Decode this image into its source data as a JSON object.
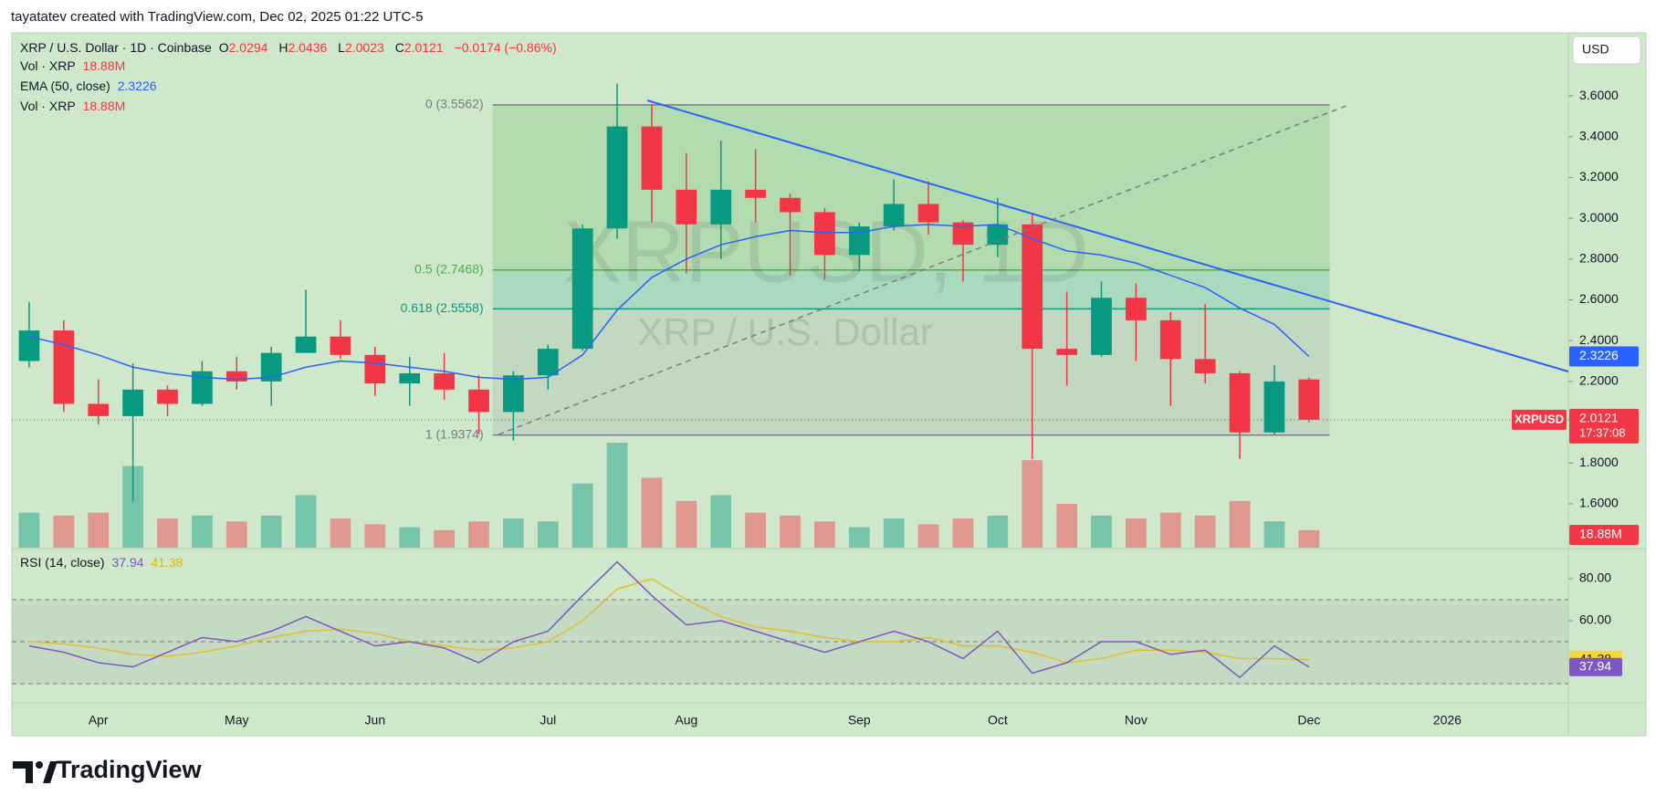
{
  "credit": "tayatatev created with TradingView.com, Dec 02, 2025 01:22 UTC-5",
  "brand": "TradingView",
  "chart_data": {
    "type": "candlestick",
    "title": "XRP / U.S. Dollar · 1D · Coinbase",
    "symbol": "XRPUSD",
    "watermark": "XRPUSD, 1D",
    "description": "XRP / U.S. Dollar",
    "currency": "USD",
    "countdown": "17:37:08",
    "last_bar": {
      "labels": [
        "O",
        "H",
        "L",
        "C"
      ],
      "values": [
        2.0294,
        2.0436,
        2.0023,
        2.0121
      ],
      "change": "−0.0174 (−0.86%)"
    },
    "categories": [
      null,
      null,
      "Apr",
      null,
      null,
      null,
      "May",
      null,
      null,
      null,
      "Jun",
      null,
      null,
      null,
      null,
      "Jul",
      null,
      null,
      null,
      "Aug",
      null,
      null,
      null,
      null,
      "Sep",
      null,
      null,
      null,
      "Oct",
      null,
      null,
      null,
      "Nov",
      null,
      null,
      null,
      null,
      "Dec",
      null,
      null,
      null,
      "2026",
      null,
      null,
      null
    ],
    "open": [
      2.3,
      2.45,
      2.09,
      2.03,
      2.16,
      2.09,
      2.25,
      2.2,
      2.34,
      2.42,
      2.33,
      2.19,
      2.24,
      2.16,
      2.05,
      2.23,
      2.36,
      2.95,
      3.45,
      3.14,
      2.97,
      3.14,
      3.1,
      3.03,
      2.82,
      2.96,
      3.07,
      2.98,
      2.87,
      2.97,
      2.36,
      2.33,
      2.61,
      2.5,
      2.31,
      2.24,
      1.95,
      2.21,
      null,
      null,
      null,
      null,
      null,
      null,
      null
    ],
    "high": [
      2.59,
      2.5,
      2.21,
      2.29,
      2.18,
      2.3,
      2.32,
      2.37,
      2.65,
      2.5,
      2.37,
      2.32,
      2.34,
      2.23,
      2.25,
      2.38,
      2.97,
      3.66,
      3.56,
      3.32,
      3.38,
      3.34,
      3.12,
      3.05,
      2.98,
      3.19,
      3.18,
      2.99,
      3.1,
      3.02,
      2.64,
      2.69,
      2.68,
      2.54,
      2.58,
      2.25,
      2.28,
      2.22,
      null,
      null,
      null,
      null,
      null,
      null,
      null
    ],
    "low": [
      2.27,
      2.05,
      1.99,
      1.61,
      2.03,
      2.08,
      2.16,
      2.08,
      2.34,
      2.31,
      2.13,
      2.08,
      2.11,
      1.94,
      1.91,
      2.16,
      2.35,
      2.9,
      2.98,
      2.73,
      2.8,
      2.98,
      2.72,
      2.7,
      2.74,
      2.94,
      2.92,
      2.69,
      2.81,
      1.82,
      2.18,
      2.32,
      2.3,
      2.08,
      2.19,
      1.82,
      1.94,
      2.0,
      null,
      null,
      null,
      null,
      null,
      null,
      null
    ],
    "close": [
      2.45,
      2.09,
      2.03,
      2.16,
      2.09,
      2.25,
      2.2,
      2.34,
      2.42,
      2.33,
      2.19,
      2.24,
      2.16,
      2.05,
      2.23,
      2.36,
      2.95,
      3.45,
      3.14,
      2.97,
      3.14,
      3.1,
      3.03,
      2.82,
      2.96,
      3.07,
      2.98,
      2.87,
      2.97,
      2.36,
      2.33,
      2.61,
      2.5,
      2.31,
      2.24,
      1.95,
      2.2,
      2.0121,
      null,
      null,
      null,
      null,
      null,
      null,
      null
    ],
    "up_color": "#089981",
    "down_color": "#f23645",
    "ylim": [
      1.385,
      3.909
    ],
    "yticks": [
      {
        "value": 1.6,
        "label": "1.6000"
      },
      {
        "value": 1.8,
        "label": "1.8000"
      },
      {
        "value": 2.2,
        "label": "2.2000"
      },
      {
        "value": 2.4,
        "label": "2.4000"
      },
      {
        "value": 2.6,
        "label": "2.6000"
      },
      {
        "value": 2.8,
        "label": "2.8000"
      },
      {
        "value": 3.0,
        "label": "3.0000"
      },
      {
        "value": 3.2,
        "label": "3.2000"
      },
      {
        "value": 3.4,
        "label": "3.4000"
      },
      {
        "value": 3.6,
        "label": "3.6000"
      }
    ],
    "volume": {
      "name": "Vol · XRP",
      "last_label": "18.88M",
      "values": [
        60,
        55,
        60,
        140,
        50,
        55,
        45,
        55,
        90,
        50,
        40,
        35,
        30,
        45,
        50,
        45,
        110,
        180,
        120,
        80,
        90,
        60,
        55,
        45,
        35,
        50,
        40,
        50,
        55,
        150,
        75,
        55,
        50,
        60,
        55,
        80,
        45,
        30,
        null,
        null,
        null,
        null,
        null,
        null,
        null
      ]
    },
    "ema": {
      "name": "EMA (50, close)",
      "color": "#2962ff",
      "values": [
        2.42,
        2.38,
        2.33,
        2.27,
        2.24,
        2.22,
        2.21,
        2.22,
        2.27,
        2.3,
        2.29,
        2.27,
        2.25,
        2.22,
        2.21,
        2.22,
        2.33,
        2.55,
        2.71,
        2.8,
        2.87,
        2.91,
        2.94,
        2.93,
        2.93,
        2.96,
        2.97,
        2.96,
        2.97,
        2.9,
        2.84,
        2.82,
        2.78,
        2.72,
        2.66,
        2.56,
        2.48,
        2.3226,
        null,
        null,
        null,
        null,
        null,
        null,
        null
      ]
    },
    "fib_levels": [
      {
        "label": "0 (3.5562)",
        "value": 3.5562,
        "color": "#787b86"
      },
      {
        "label": "0.5 (2.7468)",
        "value": 2.7468,
        "color": "#4caf50"
      },
      {
        "label": "0.618 (2.5558)",
        "value": 2.5558,
        "color": "#089981"
      },
      {
        "label": "1 (1.9374)",
        "value": 1.9374,
        "color": "#787b86"
      }
    ],
    "rsi": {
      "name": "RSI (14, close)",
      "color": "#7e57c2",
      "ma_color": "#e0c02a",
      "values": [
        48,
        45,
        40,
        38,
        45,
        52,
        50,
        55,
        62,
        55,
        48,
        50,
        47,
        40,
        50,
        55,
        72,
        88,
        72,
        58,
        60,
        55,
        50,
        45,
        50,
        55,
        50,
        42,
        55,
        35,
        40,
        50,
        50,
        44,
        46,
        33,
        48,
        37.94,
        null,
        null,
        null,
        null,
        null,
        null,
        null
      ],
      "ma_values": [
        50,
        49,
        47,
        44,
        43,
        45,
        48,
        52,
        55,
        56,
        54,
        50,
        48,
        46,
        47,
        50,
        60,
        75,
        80,
        70,
        62,
        57,
        55,
        52,
        50,
        50,
        52,
        48,
        48,
        45,
        40,
        42,
        46,
        46,
        45,
        42,
        42,
        41.38,
        null,
        null,
        null,
        null,
        null,
        null,
        null
      ],
      "ylim": [
        20.9,
        93.9
      ],
      "yticks": [
        {
          "value": 60,
          "label": "60.00"
        },
        {
          "value": 80,
          "label": "80.00"
        }
      ],
      "bands": [
        30,
        50,
        70
      ]
    }
  }
}
